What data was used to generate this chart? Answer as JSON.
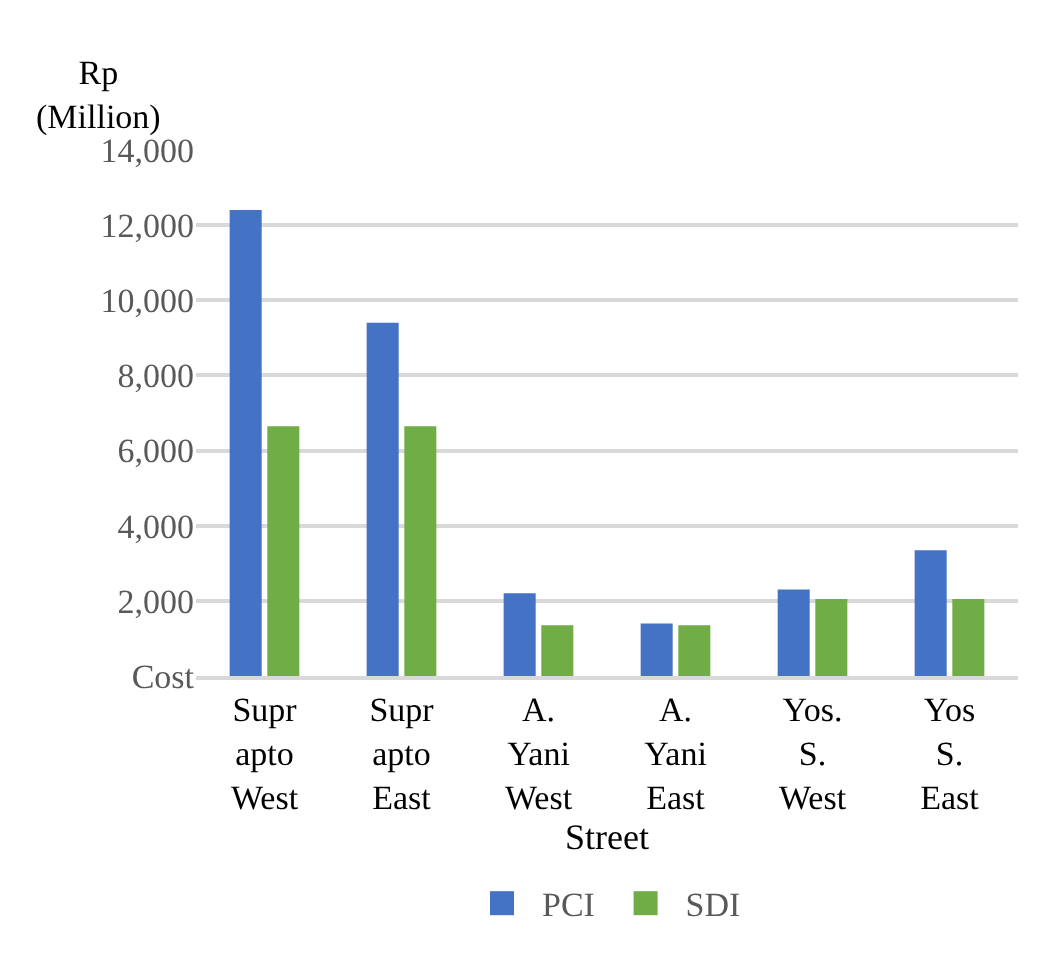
{
  "chart_data": {
    "type": "bar",
    "categories": [
      "Suprapto West",
      "Suprapto East",
      "A. Yani West",
      "A. Yani East",
      "Yos. S. West",
      "Yos S. East"
    ],
    "series": [
      {
        "name": "PCI",
        "color": "#4472c4",
        "values": [
          12400,
          9400,
          2200,
          1400,
          2300,
          3350
        ]
      },
      {
        "name": "SDI",
        "color": "#70ad47",
        "values": [
          6650,
          6650,
          1350,
          1350,
          2050,
          2050
        ]
      }
    ],
    "xlabel": "Street",
    "ylabel": "Rp\n(Million)",
    "ylim": [
      0,
      14000
    ],
    "yticks": [
      {
        "value": 0,
        "label": "Cost"
      },
      {
        "value": 2000,
        "label": "2,000"
      },
      {
        "value": 4000,
        "label": "4,000"
      },
      {
        "value": 6000,
        "label": "6,000"
      },
      {
        "value": 8000,
        "label": "8,000"
      },
      {
        "value": 10000,
        "label": "10,000"
      },
      {
        "value": 12000,
        "label": "12,000"
      },
      {
        "value": 14000,
        "label": "14,000"
      }
    ],
    "grid": "y",
    "legend": "bottom"
  }
}
